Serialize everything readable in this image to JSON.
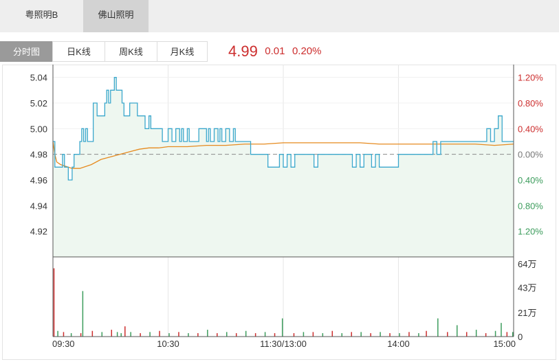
{
  "top_tabs": [
    {
      "label": "粤照明B"
    },
    {
      "label": "佛山照明"
    }
  ],
  "chart_tabs": [
    {
      "label": "分时图"
    },
    {
      "label": "日K线"
    },
    {
      "label": "周K线"
    },
    {
      "label": "月K线"
    }
  ],
  "quote": {
    "price": "4.99",
    "change": "0.01",
    "change_pct": "0.20%"
  },
  "colors": {
    "up": "#cc2d2d",
    "down": "#3c9c5c",
    "price_line": "#3aa7cc",
    "avg_line": "#e68a1e",
    "area_fill": "#eef7f0"
  },
  "chart_data": {
    "type": "line",
    "prev_close": 4.98,
    "price_ticks": [
      "5.04",
      "5.02",
      "5.00",
      "4.98",
      "4.96",
      "4.94",
      "4.92"
    ],
    "price_tick_values": [
      5.04,
      5.02,
      5.0,
      4.98,
      4.96,
      4.94,
      4.92
    ],
    "pct_ticks": [
      "1.20%",
      "0.80%",
      "0.40%",
      "0.00%",
      "0.40%",
      "0.80%",
      "1.20%"
    ],
    "volume_ticks": [
      "64万",
      "43万",
      "21万",
      "0"
    ],
    "volume_tick_values": [
      64,
      43,
      21,
      0
    ],
    "time_ticks": [
      "09:30",
      "10:30",
      "11:30/13:00",
      "14:00",
      "15:00"
    ],
    "time_tick_minutes": [
      0,
      60,
      120,
      180,
      240
    ],
    "series": [
      {
        "key": "price",
        "t": [
          0,
          1,
          2,
          5,
          6,
          8,
          9,
          10,
          11,
          12,
          14,
          15,
          16,
          17,
          18,
          21,
          22,
          23,
          26,
          27,
          28,
          29,
          30,
          31,
          32,
          33,
          36,
          37,
          40,
          42,
          44,
          48,
          50,
          51,
          54,
          57,
          60,
          62,
          64,
          66,
          67,
          68,
          70,
          71,
          73,
          76,
          78,
          80,
          81,
          82,
          84,
          86,
          87,
          88,
          90,
          92,
          94,
          95,
          98,
          100,
          101,
          103,
          105,
          110,
          112,
          114,
          116,
          118,
          120,
          122,
          124,
          126,
          128,
          130,
          134,
          136,
          138,
          140,
          142,
          144,
          146,
          148,
          150,
          152,
          154,
          156,
          158,
          160,
          162,
          164,
          166,
          168,
          170,
          172,
          174,
          176,
          178,
          180,
          182,
          184,
          186,
          188,
          190,
          192,
          194,
          196,
          198,
          200,
          202,
          204,
          206,
          208,
          210,
          212,
          214,
          216,
          218,
          220,
          222,
          224,
          226,
          228,
          230,
          232,
          234,
          236,
          238,
          239
        ],
        "v": [
          4.99,
          4.97,
          4.97,
          4.98,
          4.97,
          4.96,
          4.96,
          4.97,
          4.98,
          4.98,
          4.99,
          5.0,
          4.99,
          5.0,
          4.99,
          5.02,
          5.02,
          5.01,
          5.01,
          5.02,
          5.03,
          5.02,
          5.03,
          5.03,
          5.04,
          5.03,
          5.02,
          5.01,
          5.02,
          5.02,
          5.01,
          5.0,
          5.01,
          5.0,
          5.0,
          4.99,
          5.0,
          4.99,
          5.0,
          4.99,
          5.0,
          4.99,
          5.0,
          4.99,
          4.99,
          5.0,
          5.0,
          4.99,
          5.0,
          4.99,
          5.0,
          4.99,
          5.0,
          4.99,
          5.0,
          4.99,
          5.0,
          4.99,
          4.99,
          4.99,
          4.99,
          4.98,
          4.98,
          4.98,
          4.97,
          4.97,
          4.97,
          4.98,
          4.97,
          4.98,
          4.97,
          4.98,
          4.98,
          4.98,
          4.98,
          4.97,
          4.98,
          4.98,
          4.98,
          4.98,
          4.98,
          4.98,
          4.98,
          4.98,
          4.98,
          4.97,
          4.98,
          4.97,
          4.98,
          4.98,
          4.97,
          4.98,
          4.97,
          4.97,
          4.97,
          4.97,
          4.97,
          4.98,
          4.98,
          4.98,
          4.98,
          4.98,
          4.98,
          4.98,
          4.98,
          4.98,
          4.99,
          4.98,
          4.99,
          4.99,
          4.99,
          4.99,
          4.99,
          4.99,
          4.99,
          4.99,
          4.99,
          4.99,
          4.99,
          4.99,
          5.0,
          4.99,
          5.0,
          5.01,
          4.99,
          4.99,
          4.99,
          4.99
        ]
      },
      {
        "key": "avg",
        "t": [
          0,
          1,
          2,
          4,
          6,
          8,
          10,
          12,
          14,
          16,
          18,
          20,
          25,
          30,
          35,
          40,
          45,
          50,
          55,
          60,
          70,
          80,
          90,
          100,
          110,
          120,
          130,
          140,
          150,
          160,
          170,
          180,
          190,
          200,
          210,
          220,
          230,
          240
        ],
        "v": [
          4.99,
          4.98,
          4.974,
          4.972,
          4.971,
          4.97,
          4.969,
          4.969,
          4.969,
          4.97,
          4.971,
          4.972,
          4.976,
          4.978,
          4.98,
          4.982,
          4.984,
          4.985,
          4.985,
          4.986,
          4.986,
          4.987,
          4.987,
          4.988,
          4.988,
          4.989,
          4.989,
          4.989,
          4.989,
          4.989,
          4.988,
          4.988,
          4.988,
          4.988,
          4.988,
          4.988,
          4.987,
          4.988
        ]
      }
    ],
    "volume": {
      "t": [
        0,
        2,
        5,
        9,
        14,
        15,
        20,
        25,
        30,
        33,
        35,
        37,
        40,
        45,
        50,
        55,
        60,
        65,
        70,
        75,
        80,
        85,
        90,
        95,
        100,
        105,
        110,
        115,
        119,
        125,
        130,
        135,
        140,
        145,
        150,
        155,
        160,
        165,
        170,
        175,
        180,
        185,
        190,
        194,
        200,
        205,
        210,
        215,
        220,
        225,
        230,
        233,
        236,
        239
      ],
      "v": [
        60,
        5,
        4,
        3,
        3,
        40,
        5,
        4,
        6,
        4,
        3,
        9,
        4,
        3,
        4,
        5,
        3,
        4,
        3,
        3,
        6,
        3,
        4,
        3,
        5,
        3,
        4,
        3,
        16,
        3,
        4,
        4,
        3,
        5,
        3,
        4,
        4,
        3,
        4,
        3,
        3,
        4,
        3,
        5,
        16,
        4,
        10,
        4,
        6,
        3,
        5,
        12,
        4,
        4
      ],
      "up": [
        true,
        false,
        true,
        false,
        true,
        false,
        true,
        false,
        true,
        false,
        false,
        true,
        false,
        true,
        false,
        true,
        false,
        true,
        false,
        true,
        false,
        true,
        false,
        true,
        false,
        true,
        false,
        true,
        false,
        true,
        false,
        true,
        false,
        true,
        false,
        true,
        false,
        true,
        false,
        true,
        false,
        true,
        false,
        true,
        false,
        true,
        false,
        true,
        false,
        true,
        false,
        false,
        true,
        false
      ]
    }
  }
}
